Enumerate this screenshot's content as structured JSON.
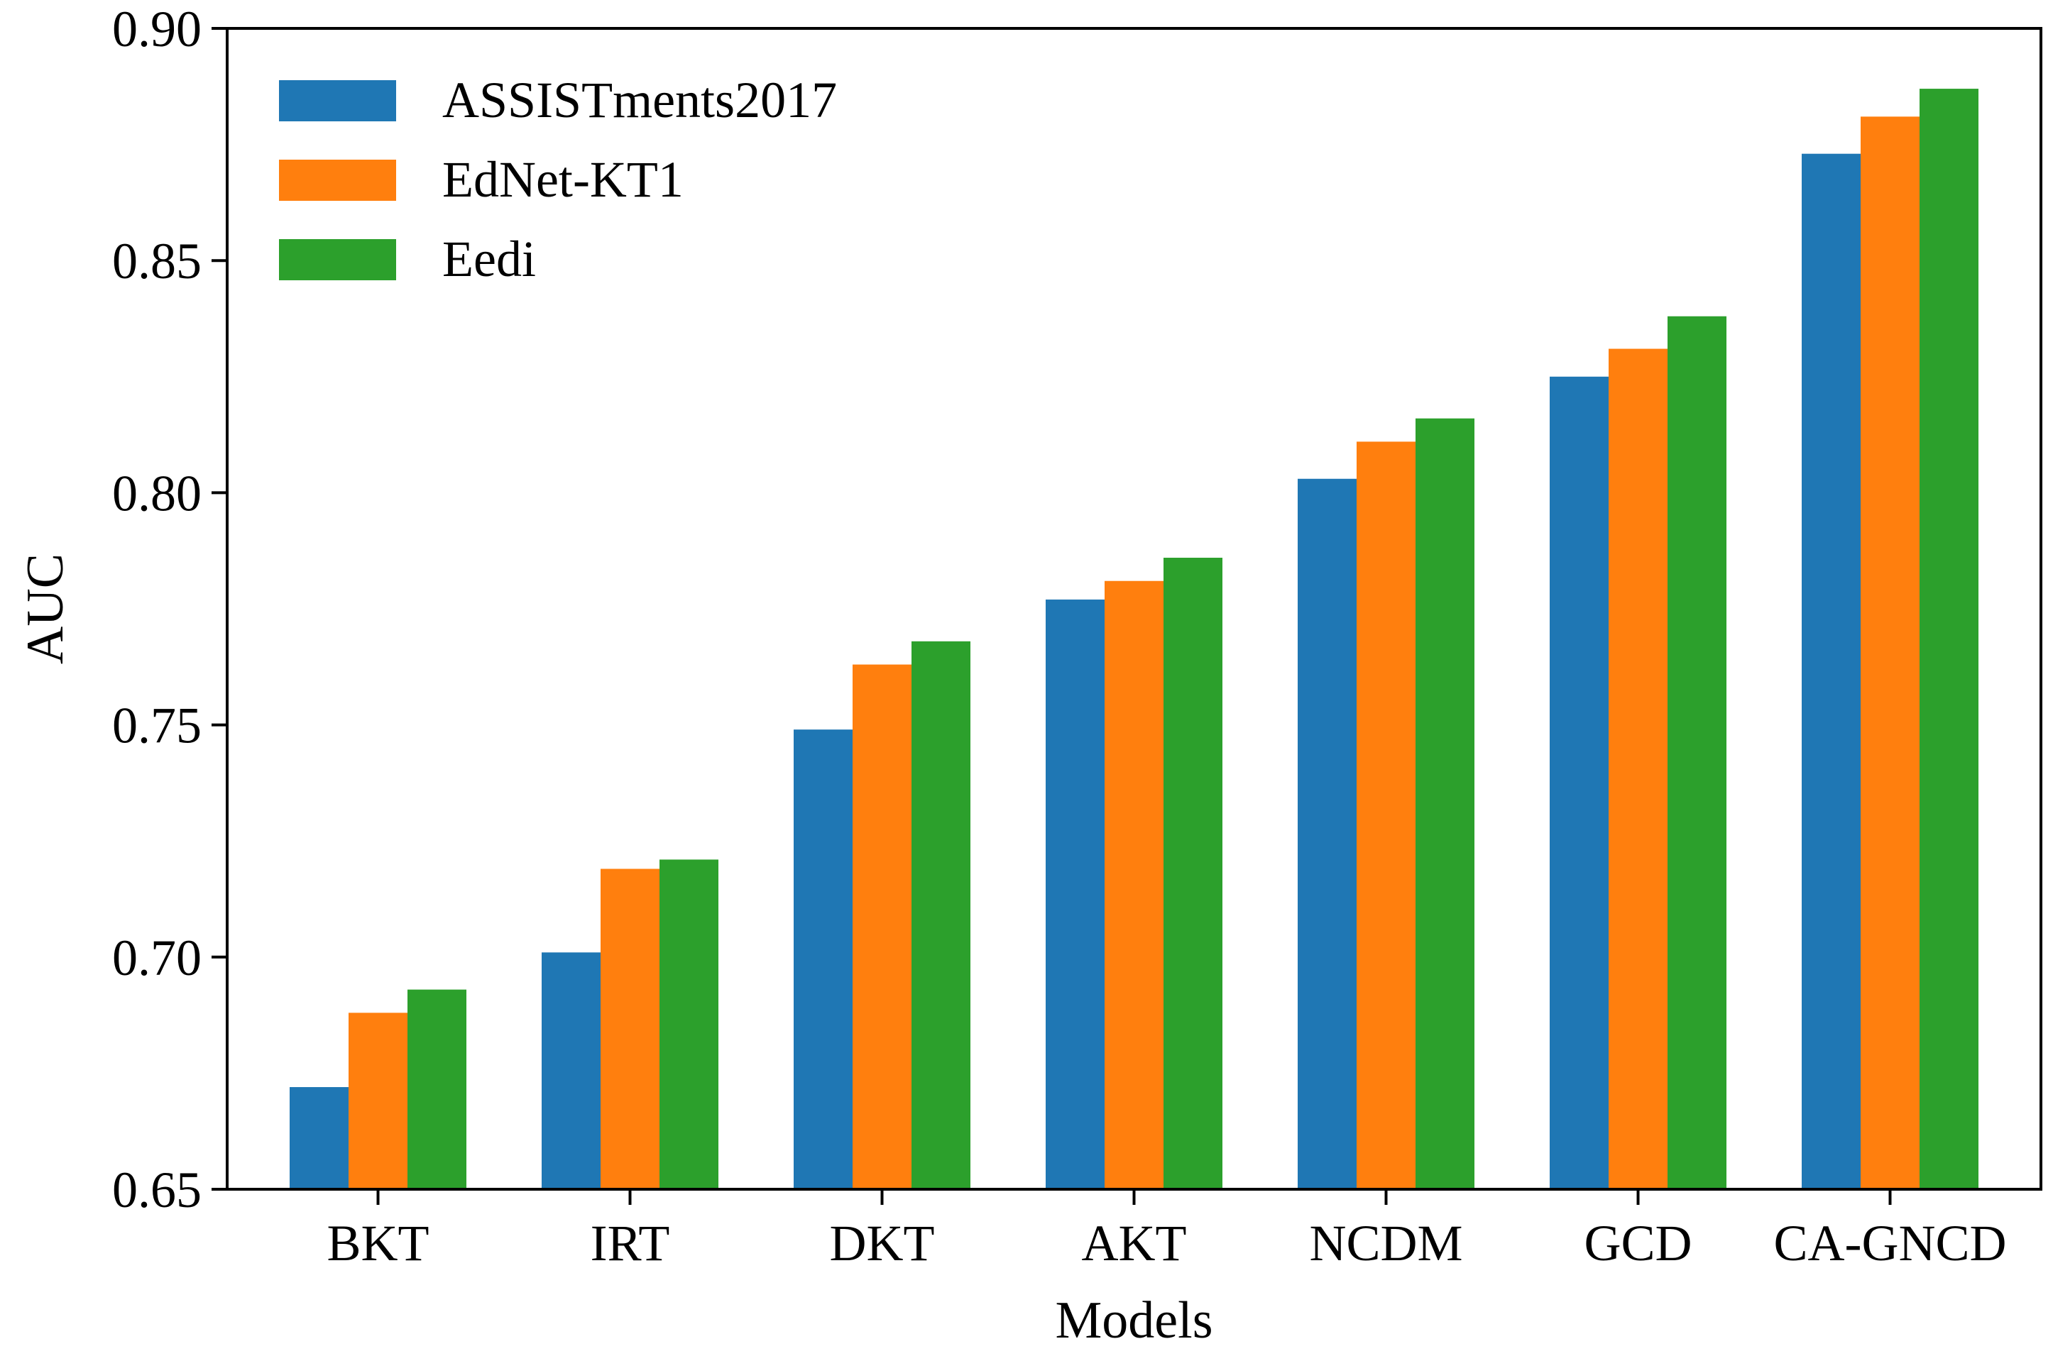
{
  "chart_data": {
    "type": "bar",
    "title": "",
    "xlabel": "Models",
    "ylabel": "AUC",
    "ylim": [
      0.65,
      0.9
    ],
    "yticks": [
      "0.65",
      "0.70",
      "0.75",
      "0.80",
      "0.85",
      "0.90"
    ],
    "categories": [
      "BKT",
      "IRT",
      "DKT",
      "AKT",
      "NCDM",
      "GCD",
      "CA-GNCD"
    ],
    "series": [
      {
        "name": "ASSISTments2017",
        "color": "#1f77b4",
        "values": [
          0.672,
          0.701,
          0.749,
          0.777,
          0.803,
          0.825,
          0.873
        ]
      },
      {
        "name": "EdNet-KT1",
        "color": "#ff7f0e",
        "values": [
          0.688,
          0.719,
          0.763,
          0.781,
          0.811,
          0.831,
          0.881
        ]
      },
      {
        "name": "Eedi",
        "color": "#2ca02c",
        "values": [
          0.693,
          0.721,
          0.768,
          0.786,
          0.816,
          0.838,
          0.887
        ]
      }
    ],
    "legend": "top-left",
    "grid": false
  }
}
